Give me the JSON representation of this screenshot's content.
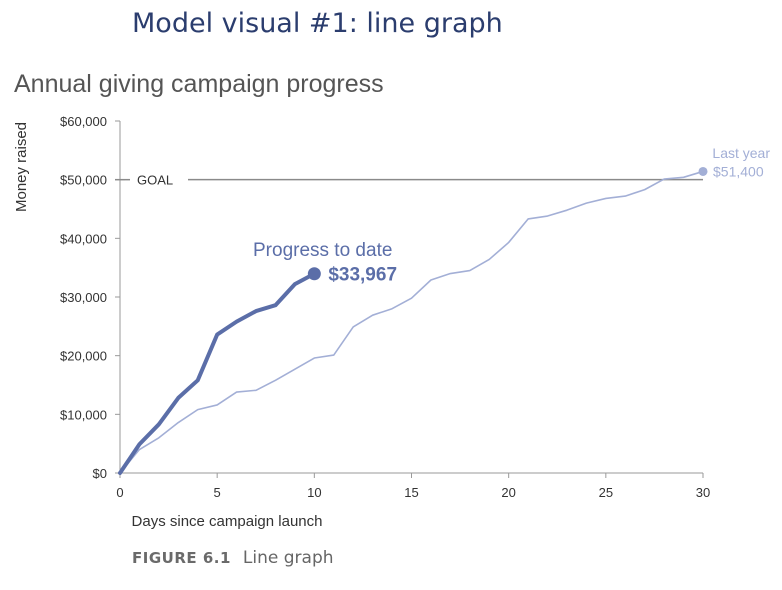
{
  "heading": "Model visual #1: line graph",
  "caption": {
    "figure": "FIGURE 6.1",
    "text": "Line graph"
  },
  "colors": {
    "current": "#5b6ea8",
    "last": "#a3afd6",
    "goal": "#8a8a8a",
    "axis": "#9a9a9a",
    "heading": "#2b3d6e"
  },
  "chart_data": {
    "type": "line",
    "title": "Annual giving campaign progress",
    "xlabel": "Days since campaign launch",
    "ylabel": "Money raised",
    "xlim": [
      0,
      30
    ],
    "ylim": [
      0,
      60000
    ],
    "x_ticks": [
      0,
      5,
      10,
      15,
      20,
      25,
      30
    ],
    "y_ticks": [
      {
        "value": 0,
        "label": "$0"
      },
      {
        "value": 10000,
        "label": "$10,000"
      },
      {
        "value": 20000,
        "label": "$20,000"
      },
      {
        "value": 30000,
        "label": "$30,000"
      },
      {
        "value": 40000,
        "label": "$40,000"
      },
      {
        "value": 50000,
        "label": "$50,000"
      },
      {
        "value": 60000,
        "label": "$60,000"
      }
    ],
    "goal": {
      "label": "GOAL",
      "value": 50000
    },
    "series": [
      {
        "name": "Progress to date",
        "end_label": "$33,967",
        "x": [
          0,
          1,
          2,
          3,
          4,
          5,
          6,
          7,
          8,
          9,
          10
        ],
        "y": [
          0,
          4900,
          8300,
          12800,
          15800,
          23600,
          25800,
          27600,
          28600,
          32200,
          33967
        ]
      },
      {
        "name": "Last year",
        "end_label": "$51,400",
        "x": [
          0,
          1,
          2,
          3,
          4,
          5,
          6,
          7,
          8,
          9,
          10,
          11,
          12,
          13,
          14,
          15,
          16,
          17,
          18,
          19,
          20,
          21,
          22,
          23,
          24,
          25,
          26,
          27,
          28,
          29,
          30
        ],
        "y": [
          0,
          4000,
          6000,
          8600,
          10800,
          11600,
          13800,
          14100,
          15800,
          17700,
          19600,
          20100,
          24900,
          26900,
          28000,
          29800,
          32900,
          34000,
          34500,
          36400,
          39300,
          43300,
          43800,
          44800,
          46000,
          46800,
          47200,
          48300,
          50100,
          50400,
          51400
        ]
      }
    ]
  }
}
